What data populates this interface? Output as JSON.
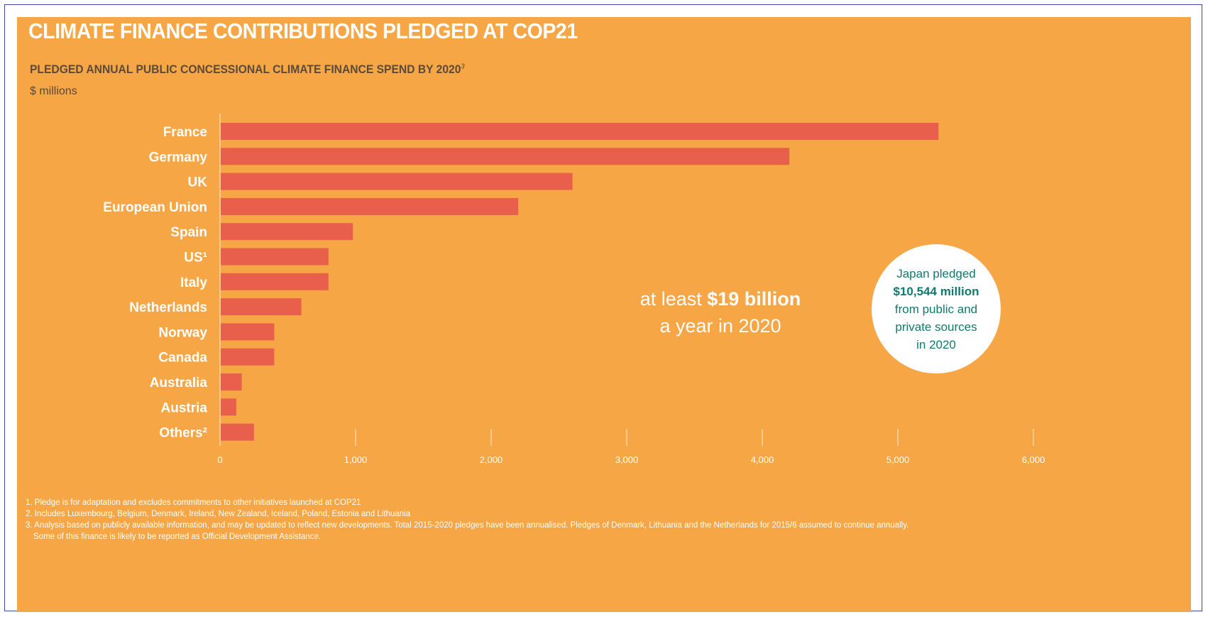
{
  "title": "CLIMATE FINANCE CONTRIBUTIONS PLEDGED AT COP21",
  "subtitle": "PLEDGED ANNUAL PUBLIC CONCESSIONAL CLIMATE FINANCE SPEND BY 2020",
  "subtitle_note": "3",
  "units": "$ millions",
  "colors": {
    "background": "#f6a645",
    "bar": "#e85f4b",
    "bubble_text": "#0f7a6e"
  },
  "chart_data": {
    "type": "bar",
    "orientation": "horizontal",
    "categories": [
      "France",
      "Germany",
      "UK",
      "European Union",
      "Spain",
      "US¹",
      "Italy",
      "Netherlands",
      "Norway",
      "Canada",
      "Australia",
      "Austria",
      "Others²"
    ],
    "values": [
      5300,
      4200,
      2600,
      2200,
      980,
      800,
      800,
      600,
      400,
      400,
      160,
      120,
      250
    ],
    "xlim": [
      0,
      6000
    ],
    "xticks": [
      0,
      1000,
      2000,
      3000,
      4000,
      5000,
      6000
    ],
    "xtick_labels": [
      "0",
      "1,000",
      "2,000",
      "3,000",
      "4,000",
      "5,000",
      "6,000"
    ],
    "grid": false
  },
  "callout": {
    "prefix": "at least ",
    "amount": "$19 billion",
    "line2": "a year in 2020"
  },
  "bubble": {
    "line1": "Japan pledged",
    "amount": "$10,544 million",
    "line3": "from public and",
    "line4": "private sources",
    "line5": "in 2020"
  },
  "footnotes": [
    "1. Pledge is for adaptation and excludes commitments to other initiatives launched at COP21",
    "2. Includes Luxembourg, Belgium, Denmark, Ireland, New Zealand, Iceland, Poland, Estonia and Lithuania",
    "3. Analysis based on publicly available information, and may be updated to reflect new developments. Total 2015-2020 pledges have been annualised. Pledges of Denmark, Lithuania and the Netherlands for 2015/6 assumed to continue annually.",
    "Some of this finance is likely to be reported as Official Development Assistance."
  ]
}
